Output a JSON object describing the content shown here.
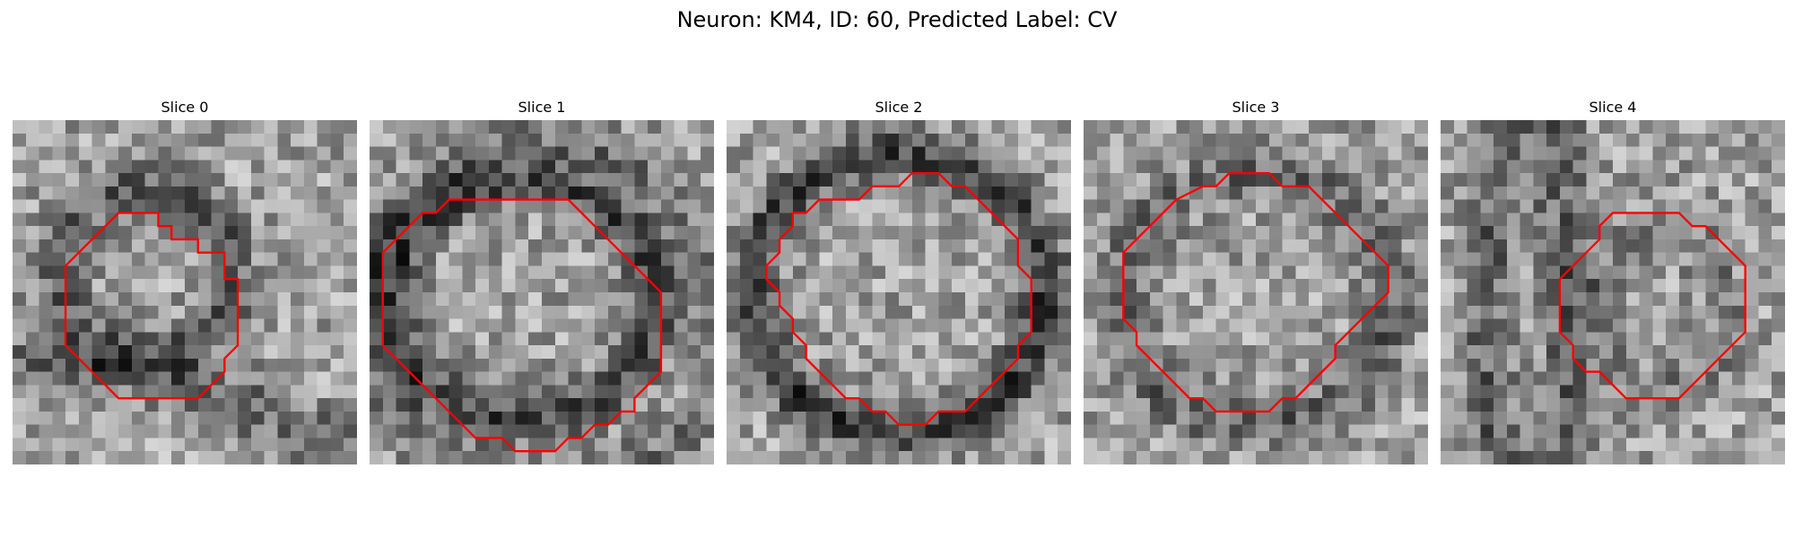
{
  "figure": {
    "title": "Neuron: KM4, ID: 60, Predicted Label: CV",
    "contour_color": "#ff0000"
  },
  "slices": [
    {
      "label": "Slice 0",
      "contour": [
        [
          10.5,
          6.5
        ],
        [
          10.5,
          7.5
        ],
        [
          11.5,
          7.5
        ],
        [
          11.5,
          8.5
        ],
        [
          12.5,
          8.5
        ],
        [
          13.5,
          8.5
        ],
        [
          13.5,
          9.5
        ],
        [
          14.5,
          9.5
        ],
        [
          15.5,
          9.5
        ],
        [
          15.5,
          10.5
        ],
        [
          15.5,
          11.5
        ],
        [
          16.5,
          11.5
        ],
        [
          16.5,
          12.5
        ],
        [
          16.5,
          13.5
        ],
        [
          16.5,
          14.5
        ],
        [
          16.5,
          15.5
        ],
        [
          16.5,
          16.5
        ],
        [
          15.5,
          17.5
        ],
        [
          15.5,
          18.5
        ],
        [
          14.5,
          19.5
        ],
        [
          13.5,
          20.5
        ],
        [
          7.5,
          20.5
        ],
        [
          6.5,
          19.5
        ],
        [
          5.5,
          18.5
        ],
        [
          4.5,
          17.5
        ],
        [
          3.5,
          16.5
        ],
        [
          3.5,
          15.5
        ],
        [
          3.5,
          11.5
        ],
        [
          3.5,
          10.5
        ],
        [
          4.5,
          9.5
        ],
        [
          5.5,
          8.5
        ],
        [
          6.5,
          7.5
        ],
        [
          7.5,
          6.5
        ]
      ]
    },
    {
      "label": "Slice 1",
      "contour": [
        [
          5.5,
          5.5
        ],
        [
          14.5,
          5.5
        ],
        [
          15.5,
          6.5
        ],
        [
          16.5,
          7.5
        ],
        [
          17.5,
          8.5
        ],
        [
          18.5,
          9.5
        ],
        [
          19.5,
          10.5
        ],
        [
          20.5,
          11.5
        ],
        [
          21.5,
          12.5
        ],
        [
          21.5,
          13.5
        ],
        [
          21.5,
          18.5
        ],
        [
          20.5,
          19.5
        ],
        [
          19.5,
          20.5
        ],
        [
          19.5,
          21.5
        ],
        [
          18.5,
          21.5
        ],
        [
          17.5,
          22.5
        ],
        [
          16.5,
          22.5
        ],
        [
          15.5,
          23.5
        ],
        [
          14.5,
          23.5
        ],
        [
          13.5,
          24.5
        ],
        [
          10.5,
          24.5
        ],
        [
          9.5,
          23.5
        ],
        [
          7.5,
          23.5
        ],
        [
          6.5,
          22.5
        ],
        [
          5.5,
          21.5
        ],
        [
          4.5,
          20.5
        ],
        [
          3.5,
          19.5
        ],
        [
          2.5,
          18.5
        ],
        [
          1.5,
          17.5
        ],
        [
          0.5,
          16.5
        ],
        [
          0.5,
          9.5
        ],
        [
          1.5,
          8.5
        ],
        [
          2.5,
          7.5
        ],
        [
          3.5,
          6.5
        ],
        [
          4.5,
          6.5
        ]
      ]
    },
    {
      "label": "Slice 2",
      "contour": [
        [
          9.5,
          5.5
        ],
        [
          10.5,
          4.5
        ],
        [
          12.5,
          4.5
        ],
        [
          13.5,
          3.5
        ],
        [
          15.5,
          3.5
        ],
        [
          16.5,
          4.5
        ],
        [
          17.5,
          4.5
        ],
        [
          18.5,
          5.5
        ],
        [
          19.5,
          6.5
        ],
        [
          20.5,
          7.5
        ],
        [
          21.5,
          8.5
        ],
        [
          21.5,
          9.5
        ],
        [
          21.5,
          10.5
        ],
        [
          22.5,
          11.5
        ],
        [
          22.5,
          12.5
        ],
        [
          22.5,
          15.5
        ],
        [
          21.5,
          16.5
        ],
        [
          21.5,
          17.5
        ],
        [
          20.5,
          18.5
        ],
        [
          19.5,
          19.5
        ],
        [
          18.5,
          20.5
        ],
        [
          17.5,
          21.5
        ],
        [
          15.5,
          21.5
        ],
        [
          14.5,
          22.5
        ],
        [
          12.5,
          22.5
        ],
        [
          11.5,
          21.5
        ],
        [
          10.5,
          21.5
        ],
        [
          9.5,
          20.5
        ],
        [
          8.5,
          20.5
        ],
        [
          7.5,
          19.5
        ],
        [
          6.5,
          18.5
        ],
        [
          5.5,
          17.5
        ],
        [
          5.5,
          16.5
        ],
        [
          4.5,
          15.5
        ],
        [
          4.5,
          14.5
        ],
        [
          3.5,
          13.5
        ],
        [
          3.5,
          12.5
        ],
        [
          2.5,
          11.5
        ],
        [
          2.5,
          10.5
        ],
        [
          3.5,
          9.5
        ],
        [
          3.5,
          8.5
        ],
        [
          4.5,
          7.5
        ],
        [
          4.5,
          6.5
        ],
        [
          5.5,
          6.5
        ],
        [
          6.5,
          5.5
        ],
        [
          8.5,
          5.5
        ]
      ]
    },
    {
      "label": "Slice 3",
      "contour": [
        [
          12.5,
          3.5
        ],
        [
          13.5,
          3.5
        ],
        [
          14.5,
          4.5
        ],
        [
          15.5,
          4.5
        ],
        [
          16.5,
          4.5
        ],
        [
          17.5,
          5.5
        ],
        [
          18.5,
          6.5
        ],
        [
          19.5,
          7.5
        ],
        [
          20.5,
          8.5
        ],
        [
          21.5,
          9.5
        ],
        [
          22.5,
          10.5
        ],
        [
          22.5,
          11.5
        ],
        [
          22.5,
          12.5
        ],
        [
          21.5,
          13.5
        ],
        [
          20.5,
          14.5
        ],
        [
          19.5,
          15.5
        ],
        [
          18.5,
          16.5
        ],
        [
          18.5,
          17.5
        ],
        [
          17.5,
          18.5
        ],
        [
          16.5,
          19.5
        ],
        [
          15.5,
          20.5
        ],
        [
          14.5,
          20.5
        ],
        [
          13.5,
          21.5
        ],
        [
          12.5,
          21.5
        ],
        [
          11.5,
          21.5
        ],
        [
          10.5,
          21.5
        ],
        [
          9.5,
          21.5
        ],
        [
          8.5,
          20.5
        ],
        [
          7.5,
          20.5
        ],
        [
          6.5,
          19.5
        ],
        [
          5.5,
          18.5
        ],
        [
          4.5,
          17.5
        ],
        [
          3.5,
          16.5
        ],
        [
          3.5,
          15.5
        ],
        [
          2.5,
          14.5
        ],
        [
          2.5,
          13.5
        ],
        [
          2.5,
          9.5
        ],
        [
          3.5,
          8.5
        ],
        [
          4.5,
          7.5
        ],
        [
          5.5,
          6.5
        ],
        [
          6.5,
          5.5
        ],
        [
          8.5,
          4.5
        ],
        [
          9.5,
          4.5
        ],
        [
          10.5,
          3.5
        ],
        [
          11.5,
          3.5
        ]
      ]
    },
    {
      "label": "Slice 4",
      "contour": [
        [
          12.5,
          6.5
        ],
        [
          17.5,
          6.5
        ],
        [
          18.5,
          7.5
        ],
        [
          19.5,
          7.5
        ],
        [
          20.5,
          8.5
        ],
        [
          21.5,
          9.5
        ],
        [
          22.5,
          10.5
        ],
        [
          22.5,
          11.5
        ],
        [
          22.5,
          15.5
        ],
        [
          21.5,
          16.5
        ],
        [
          20.5,
          17.5
        ],
        [
          19.5,
          18.5
        ],
        [
          18.5,
          19.5
        ],
        [
          17.5,
          20.5
        ],
        [
          13.5,
          20.5
        ],
        [
          12.5,
          19.5
        ],
        [
          11.5,
          18.5
        ],
        [
          10.5,
          18.5
        ],
        [
          9.5,
          17.5
        ],
        [
          9.5,
          16.5
        ],
        [
          8.5,
          15.5
        ],
        [
          8.5,
          12.5
        ],
        [
          8.5,
          11.5
        ],
        [
          9.5,
          10.5
        ],
        [
          10.5,
          9.5
        ],
        [
          11.5,
          8.5
        ],
        [
          11.5,
          7.5
        ]
      ]
    }
  ]
}
